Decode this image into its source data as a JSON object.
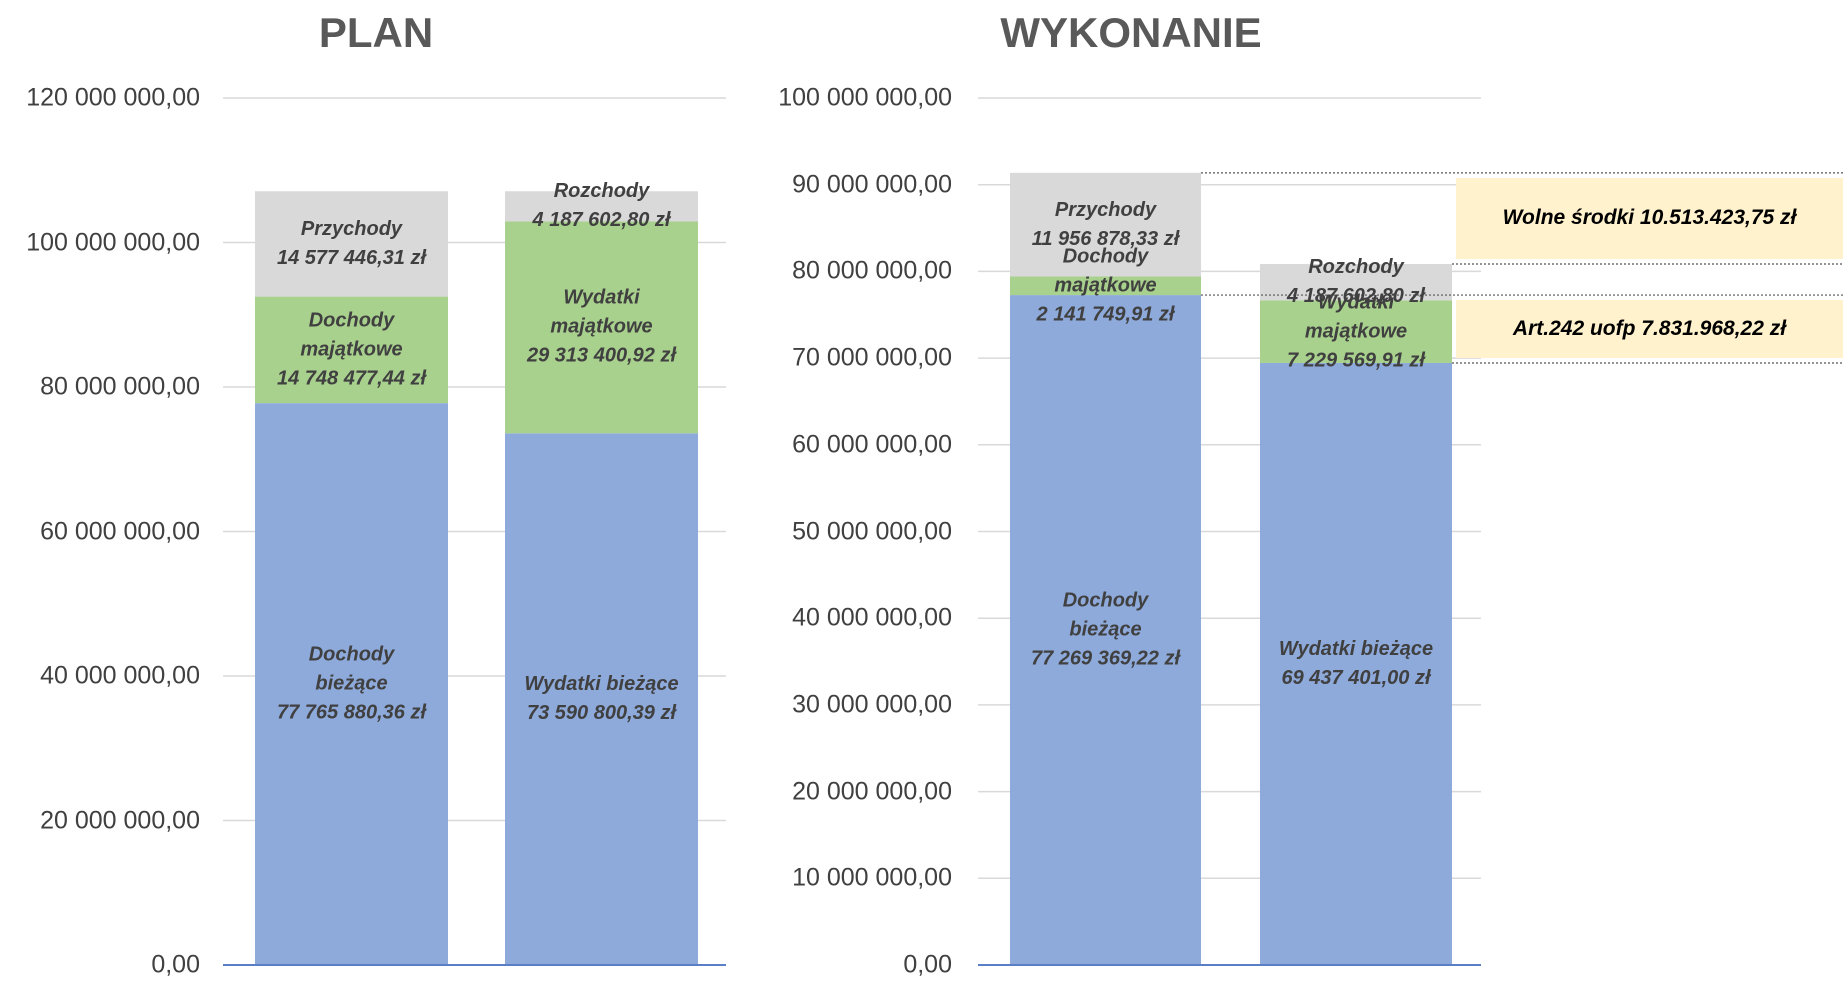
{
  "chart_data": [
    {
      "type": "stacked_bar",
      "title": "PLAN",
      "ylim": [
        0,
        120000000
      ],
      "yticks": [
        {
          "value": 0,
          "label": "0,00"
        },
        {
          "value": 20000000,
          "label": "20 000 000,00"
        },
        {
          "value": 40000000,
          "label": "40 000 000,00"
        },
        {
          "value": 60000000,
          "label": "60 000 000,00"
        },
        {
          "value": 80000000,
          "label": "80 000 000,00"
        },
        {
          "value": 100000000,
          "label": "100 000 000,00"
        },
        {
          "value": 120000000,
          "label": "120 000 000,00"
        }
      ],
      "grid": true,
      "series": [
        {
          "color": "#8eaadb",
          "labels": [
            "Dochody\nbieżące",
            "Wydatki bieżące"
          ],
          "values": [
            77765880.36,
            73590800.39
          ],
          "value_labels": [
            "77 765 880,36 zł",
            "73 590 800,39 zł"
          ]
        },
        {
          "color": "#a9d18e",
          "labels": [
            "Dochody\nmajątkowe",
            "Wydatki\nmajątkowe"
          ],
          "values": [
            14748477.44,
            29313400.92
          ],
          "value_labels": [
            "14 748 477,44 zł",
            "29 313 400,92 zł"
          ]
        },
        {
          "color": "#d9d9d9",
          "labels": [
            "Przychody",
            "Rozchody"
          ],
          "values": [
            14577446.31,
            4187602.8
          ],
          "value_labels": [
            "14 577 446,31 zł",
            "4 187 602,80 zł"
          ]
        }
      ]
    },
    {
      "type": "stacked_bar",
      "title": "WYKONANIE",
      "ylim": [
        0,
        100000000
      ],
      "yticks": [
        {
          "value": 0,
          "label": "0,00"
        },
        {
          "value": 10000000,
          "label": "10 000 000,00"
        },
        {
          "value": 20000000,
          "label": "20 000 000,00"
        },
        {
          "value": 30000000,
          "label": "30 000 000,00"
        },
        {
          "value": 40000000,
          "label": "40 000 000,00"
        },
        {
          "value": 50000000,
          "label": "50 000 000,00"
        },
        {
          "value": 60000000,
          "label": "60 000 000,00"
        },
        {
          "value": 70000000,
          "label": "70 000 000,00"
        },
        {
          "value": 80000000,
          "label": "80 000 000,00"
        },
        {
          "value": 90000000,
          "label": "90 000 000,00"
        },
        {
          "value": 100000000,
          "label": "100 000 000,00"
        }
      ],
      "grid": true,
      "series": [
        {
          "color": "#8eaadb",
          "labels": [
            "Dochody\nbieżące",
            "Wydatki bieżące"
          ],
          "values": [
            77269369.22,
            69437401.0
          ],
          "value_labels": [
            "77 269 369,22 zł",
            "69 437 401,00 zł"
          ]
        },
        {
          "color": "#a9d18e",
          "labels": [
            "Dochody\nmajątkowe",
            "Wydatki\nmajątkowe"
          ],
          "values": [
            2141749.91,
            7229569.91
          ],
          "value_labels": [
            "2 141 749,91 zł",
            "7 229 569,91 zł"
          ]
        },
        {
          "color": "#d9d9d9",
          "labels": [
            "Przychody",
            "Rozchody"
          ],
          "values": [
            11956878.33,
            4187602.8
          ],
          "value_labels": [
            "11 956 878,33 zł",
            "4 187 602,80 zł"
          ]
        }
      ],
      "annotations": [
        "Wolne środki 10.513.423,75 zł",
        "Art.242 uofp 7.831.968,22 zł"
      ]
    }
  ]
}
